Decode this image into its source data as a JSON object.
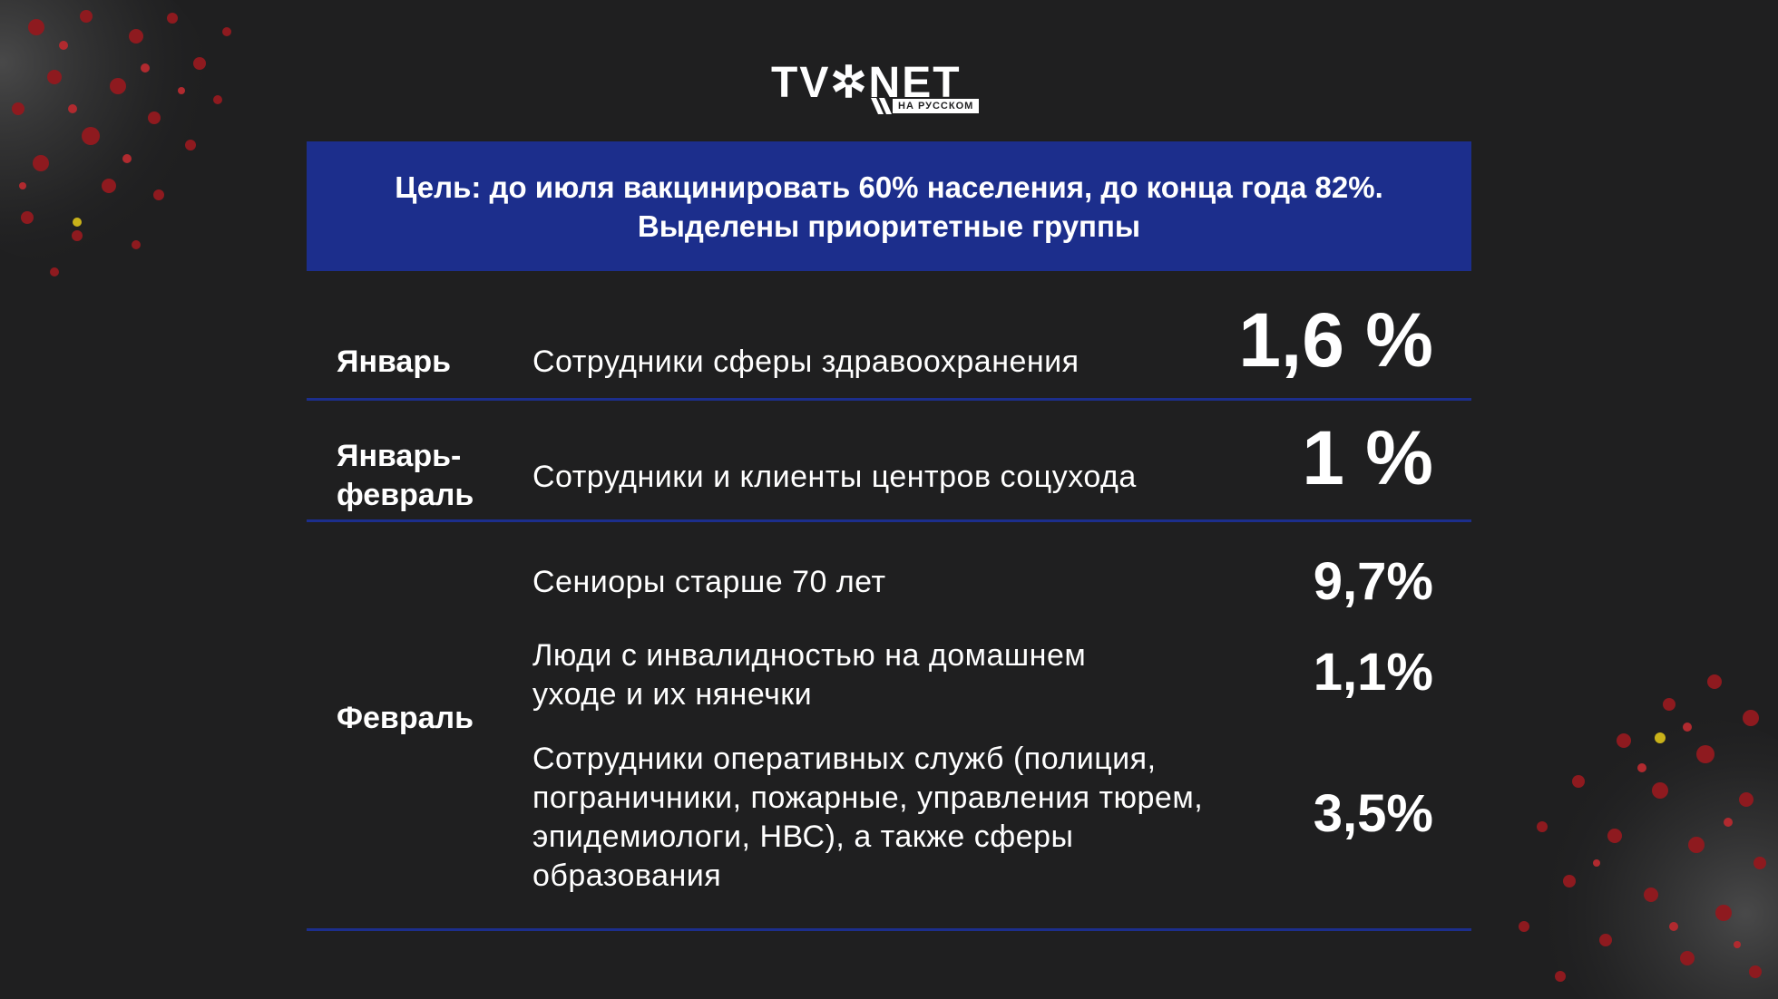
{
  "logo": {
    "main": "TV✲NET",
    "sub": "НА РУССКОМ"
  },
  "banner": {
    "line1": "Цель: до июля вакцинировать 60% населения, до конца года 82%.",
    "line2": "Выделены приоритетные группы"
  },
  "rows": [
    {
      "month": "Январь",
      "desc": "Сотрудники сферы здравоохранения",
      "percent": "1,6 %"
    },
    {
      "month_line1": "Январь-",
      "month_line2": "февраль",
      "desc": "Сотрудники и клиенты центров соцухода",
      "percent": "1 %"
    },
    {
      "month": "Февраль",
      "items": [
        {
          "desc": "Сениоры старше 70 лет",
          "percent": "9,7%"
        },
        {
          "desc_line1": "Люди с инвалидностью на домашнем",
          "desc_line2": "уходе и их нянечки",
          "percent": "1,1%"
        },
        {
          "desc_line1": "Сотрудники оперативных служб (полиция,",
          "desc_line2": "пограничники, пожарные, управления тюрем,",
          "desc_line3": "эпидемиологи, НВС), а также сферы",
          "desc_line4": "образования",
          "percent": "3,5%"
        }
      ]
    }
  ],
  "colors": {
    "background": "#1f1f20",
    "accent_blue": "#1c2e8c",
    "text": "#ffffff",
    "virus_red": "#8e1a1f"
  }
}
